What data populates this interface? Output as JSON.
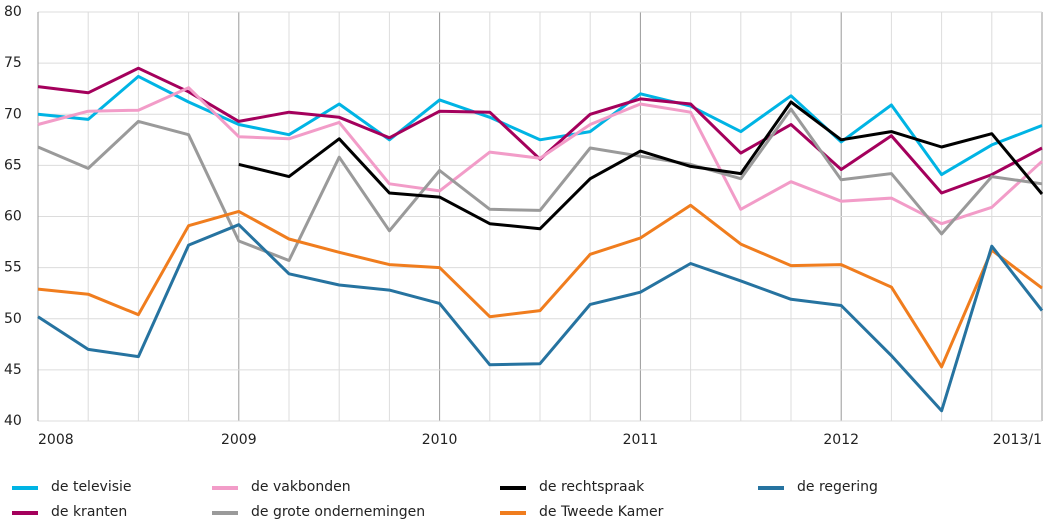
{
  "chart_data": {
    "type": "line",
    "categories": [
      "2008",
      null,
      null,
      null,
      "2009",
      null,
      null,
      null,
      "2010",
      null,
      null,
      null,
      "2011",
      null,
      null,
      null,
      "2012",
      null,
      null,
      null,
      "2013/1"
    ],
    "ylim": [
      40,
      80
    ],
    "yticks": [
      40,
      45,
      50,
      55,
      60,
      65,
      70,
      75,
      80
    ],
    "grid": true,
    "series": [
      {
        "name": "de televisie",
        "color": "#00b4e4",
        "values": [
          70,
          69.5,
          73.7,
          71.2,
          69,
          68,
          71,
          67.5,
          71.4,
          69.7,
          67.5,
          68.3,
          72,
          70.8,
          68.3,
          71.8,
          67.3,
          70.9,
          64.1,
          67,
          68.9
        ]
      },
      {
        "name": "de kranten",
        "color": "#a4005c",
        "values": [
          72.7,
          72.1,
          74.5,
          72.2,
          69.3,
          70.2,
          69.7,
          67.7,
          70.3,
          70.2,
          65.6,
          70,
          71.5,
          71,
          66.2,
          69,
          64.6,
          67.9,
          62.3,
          64.1,
          66.7
        ]
      },
      {
        "name": "de vakbonden",
        "color": "#f29cc8",
        "values": [
          69,
          70.3,
          70.4,
          72.6,
          67.8,
          67.6,
          69.2,
          63.2,
          62.5,
          66.3,
          65.7,
          69,
          71,
          70.2,
          60.7,
          63.4,
          61.5,
          61.8,
          59.3,
          60.9,
          65.4
        ]
      },
      {
        "name": "de grote ondernemingen",
        "color": "#9a9a9a",
        "values": [
          66.8,
          64.7,
          69.3,
          68,
          57.6,
          55.7,
          65.8,
          58.6,
          64.5,
          60.7,
          60.6,
          66.7,
          65.9,
          65.1,
          63.7,
          70.5,
          63.6,
          64.2,
          58.3,
          63.9,
          63.2
        ]
      },
      {
        "name": "de rechtspraak",
        "color": "#000000",
        "values": [
          null,
          null,
          null,
          null,
          65.1,
          63.9,
          67.6,
          62.3,
          61.9,
          59.3,
          58.8,
          63.7,
          66.4,
          64.9,
          64.2,
          71.2,
          67.5,
          68.3,
          66.8,
          68.1,
          62.2
        ]
      },
      {
        "name": "de Tweede Kamer",
        "color": "#f07d1e",
        "values": [
          52.9,
          52.4,
          50.4,
          59.1,
          60.5,
          57.8,
          56.5,
          55.3,
          55,
          50.2,
          50.8,
          56.3,
          57.9,
          61.1,
          57.3,
          55.2,
          55.3,
          53.1,
          45.3,
          56.7,
          53
        ]
      },
      {
        "name": "de regering",
        "color": "#2673a0",
        "values": [
          50.2,
          47,
          46.3,
          57.2,
          59.2,
          54.4,
          53.3,
          52.8,
          51.5,
          45.5,
          45.6,
          51.4,
          52.6,
          55.4,
          53.7,
          51.9,
          51.3,
          46.4,
          41,
          57.1,
          50.8
        ]
      }
    ]
  }
}
